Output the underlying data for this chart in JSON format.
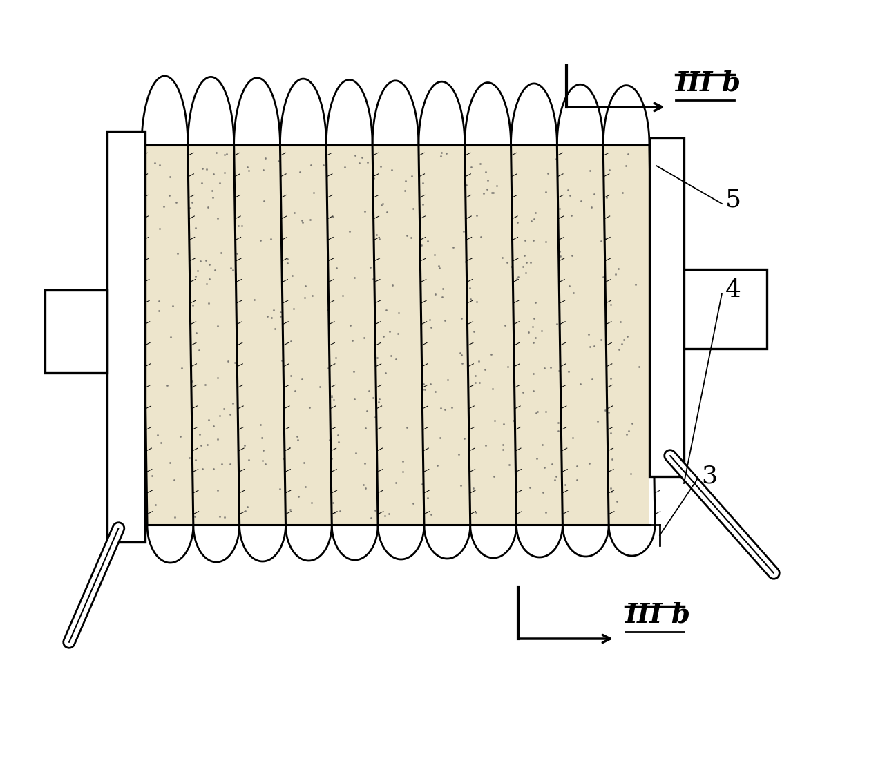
{
  "fig_width": 12.97,
  "fig_height": 11.05,
  "dpi": 100,
  "bg_color": "#ffffff",
  "fiber_color": "#000000",
  "n_coils": 11,
  "lw": 2.0
}
